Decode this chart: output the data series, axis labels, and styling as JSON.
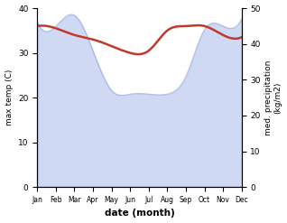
{
  "months": [
    "Jan",
    "Feb",
    "Mar",
    "Apr",
    "May",
    "Jun",
    "Jul",
    "Aug",
    "Sep",
    "Oct",
    "Nov",
    "Dec"
  ],
  "temp": [
    36.0,
    35.5,
    34.0,
    33.0,
    31.5,
    30.0,
    30.5,
    35.0,
    36.0,
    36.0,
    34.0,
    33.5
  ],
  "precip": [
    46,
    45,
    48,
    38,
    27,
    26,
    26,
    26,
    31,
    44,
    45,
    47
  ],
  "temp_color": "#c0392b",
  "precip_color": "#b0c0ee",
  "precip_edge_color": "#8090cc",
  "precip_fill_alpha": 0.6,
  "ylabel_left": "max temp (C)",
  "ylabel_right": "med. precipitation\n(kg/m2)",
  "xlabel": "date (month)",
  "ylim_left": [
    0,
    40
  ],
  "ylim_right": [
    0,
    50
  ],
  "yticks_left": [
    0,
    10,
    20,
    30,
    40
  ],
  "yticks_right": [
    0,
    10,
    20,
    30,
    40,
    50
  ]
}
